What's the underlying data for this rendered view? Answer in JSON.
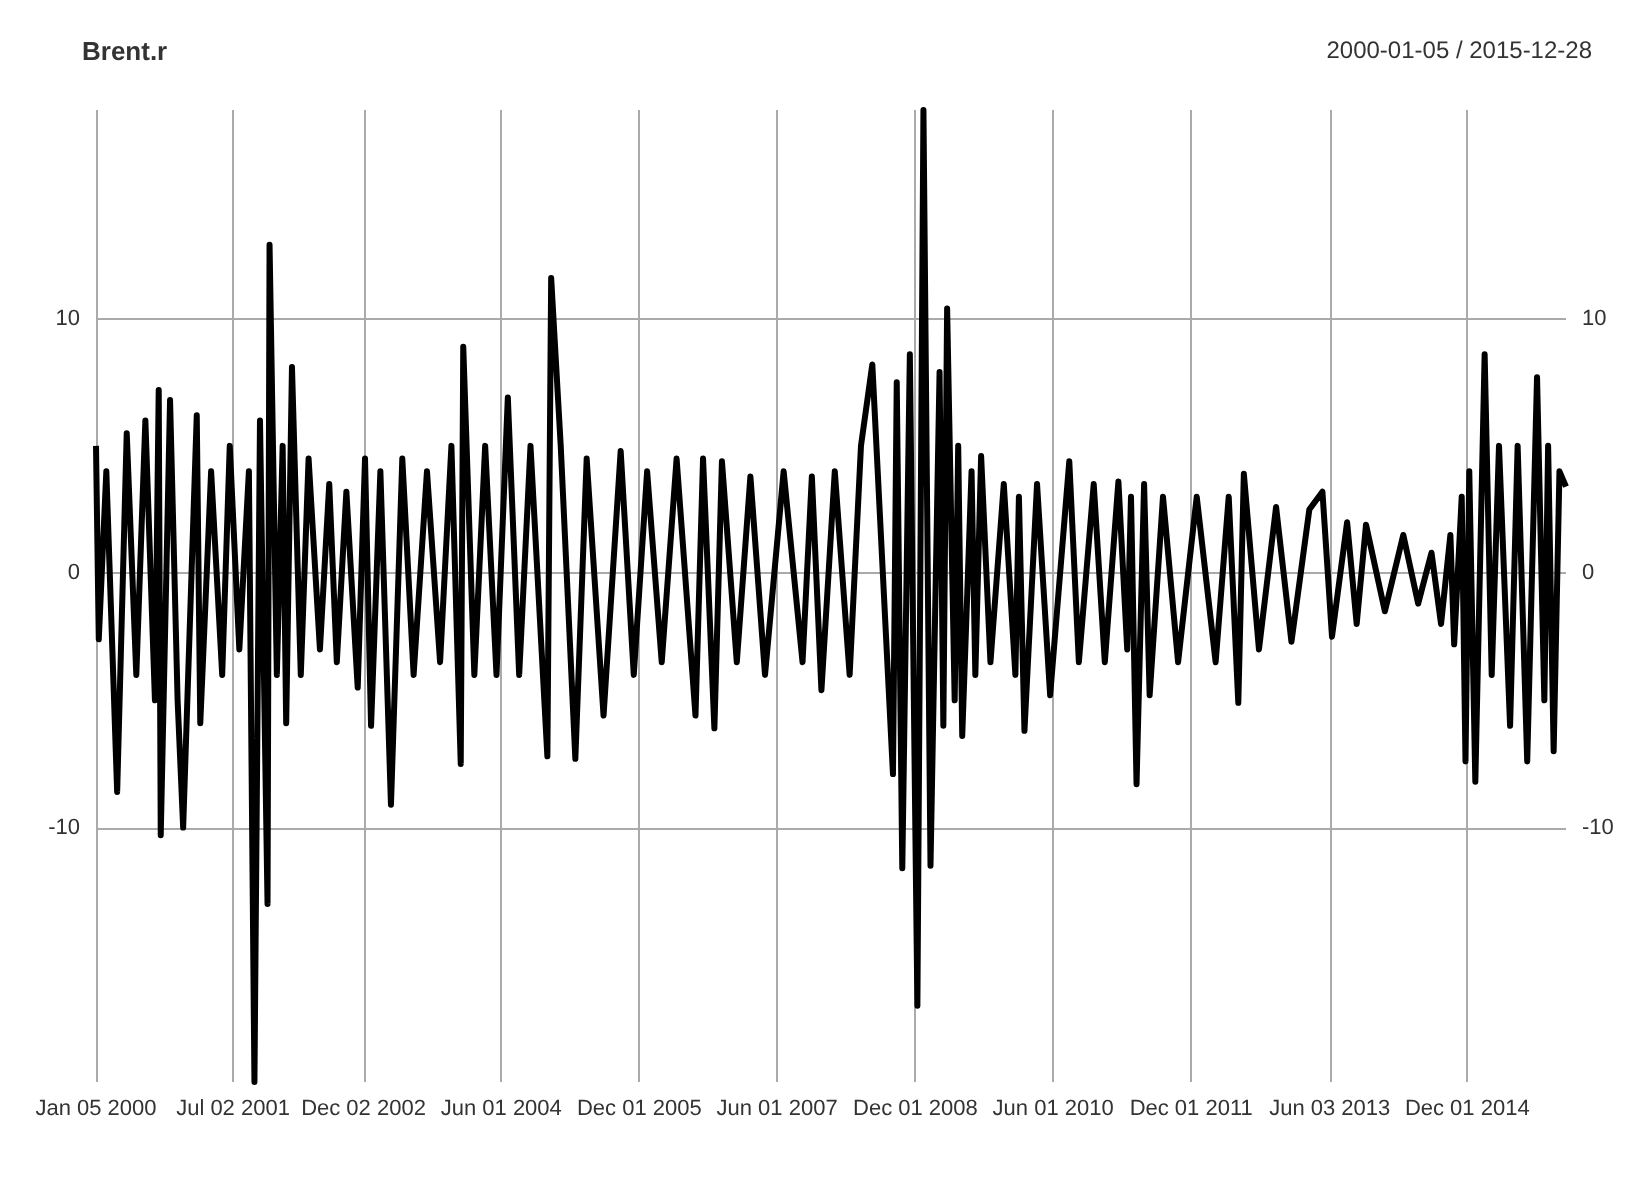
{
  "chart_data": {
    "type": "line",
    "title": "Brent.r",
    "subtitle": "2000-01-05 / 2015-12-28",
    "x": [
      "2000-01-05",
      "2000-01-16",
      "2000-02-15",
      "2000-03-29",
      "2000-05-06",
      "2000-06-13",
      "2000-07-19",
      "2000-08-26",
      "2000-09-10",
      "2000-09-18",
      "2000-10-25",
      "2000-11-24",
      "2000-12-16",
      "2001-02-08",
      "2001-02-22",
      "2001-04-06",
      "2001-05-20",
      "2001-06-19",
      "2001-07-27",
      "2001-09-03",
      "2001-09-25",
      "2001-10-17",
      "2001-11-16",
      "2001-11-24",
      "2001-12-23",
      "2002-01-15",
      "2002-01-29",
      "2002-02-21",
      "2002-03-28",
      "2002-04-28",
      "2002-06-12",
      "2002-07-19",
      "2002-08-18",
      "2002-09-25",
      "2002-11-09",
      "2002-12-08",
      "2003-01-01",
      "2003-02-07",
      "2003-03-21",
      "2003-05-05",
      "2003-06-19",
      "2003-08-11",
      "2003-10-02",
      "2003-11-16",
      "2003-12-23",
      "2004-01-02",
      "2004-02-15",
      "2004-03-29",
      "2004-05-13",
      "2004-06-27",
      "2004-08-11",
      "2004-09-25",
      "2004-12-01",
      "2004-12-16",
      "2005-01-23",
      "2005-03-22",
      "2005-05-06",
      "2005-07-12",
      "2005-09-18",
      "2005-11-09",
      "2006-01-01",
      "2006-02-28",
      "2006-04-28",
      "2006-07-12",
      "2006-08-11",
      "2006-09-25",
      "2006-10-25",
      "2006-12-23",
      "2007-02-15",
      "2007-04-14",
      "2007-06-27",
      "2007-09-10",
      "2007-10-17",
      "2007-11-24",
      "2008-01-16",
      "2008-03-15",
      "2008-04-29",
      "2008-06-13",
      "2008-09-03",
      "2008-09-18",
      "2008-10-10",
      "2008-11-09",
      "2008-12-09",
      "2009-01-02",
      "2009-01-30",
      "2009-03-07",
      "2009-03-22",
      "2009-04-06",
      "2009-05-06",
      "2009-05-20",
      "2009-06-05",
      "2009-07-12",
      "2009-07-27",
      "2009-08-19",
      "2009-09-25",
      "2009-11-17",
      "2010-01-02",
      "2010-01-16",
      "2010-02-07",
      "2010-03-29",
      "2010-05-20",
      "2010-08-04",
      "2010-09-11",
      "2010-11-09",
      "2010-12-23",
      "2011-02-15",
      "2011-03-22",
      "2011-04-06",
      "2011-04-28",
      "2011-05-28",
      "2011-06-19",
      "2011-08-11",
      "2011-10-10",
      "2011-12-23",
      "2012-03-07",
      "2012-04-28",
      "2012-06-05",
      "2012-06-27",
      "2012-08-26",
      "2012-11-02",
      "2013-01-02",
      "2013-03-14",
      "2013-05-05",
      "2013-06-12",
      "2013-08-11",
      "2013-09-18",
      "2013-10-25",
      "2014-01-08",
      "2014-03-22",
      "2014-05-20",
      "2014-07-12",
      "2014-08-19",
      "2014-09-25",
      "2014-10-10",
      "2014-11-09",
      "2014-11-24",
      "2014-12-09",
      "2015-01-02",
      "2015-02-08",
      "2015-03-08",
      "2015-04-06",
      "2015-05-20",
      "2015-06-19",
      "2015-07-27",
      "2015-09-04",
      "2015-10-03",
      "2015-10-18",
      "2015-11-09",
      "2015-12-02",
      "2015-12-28"
    ],
    "series": [
      {
        "color": "#000000",
        "values": [
          5.0,
          -2.6,
          4,
          -8.6,
          5.5,
          -4,
          6,
          -5,
          7.2,
          -10.3,
          6.8,
          -5,
          -10,
          6.2,
          -5.9,
          4,
          -4,
          5,
          -3,
          4,
          -20,
          6,
          -13,
          12.9,
          -4,
          5,
          -5.9,
          8.1,
          -4,
          4.5,
          -3,
          3.5,
          -3.5,
          3.2,
          -4.5,
          4.5,
          -6,
          4,
          -9.1,
          4.5,
          -4,
          4,
          -3.5,
          5,
          -7.5,
          8.9,
          -4,
          5,
          -4,
          6.9,
          -4,
          5,
          -7.2,
          11.6,
          5,
          -7.3,
          4.5,
          -5.6,
          4.8,
          -4,
          4,
          -3.5,
          4.5,
          -5.6,
          4.5,
          -6.1,
          4.4,
          -3.5,
          3.8,
          -4,
          4,
          -3.5,
          3.8,
          -4.6,
          4,
          -4,
          5,
          8.2,
          -7.9,
          7.5,
          -11.6,
          8.6,
          -17,
          18.2,
          -11.5,
          7.9,
          -6,
          10.4,
          -5,
          5,
          -6.4,
          4,
          -4,
          4.6,
          -3.5,
          3.5,
          -4,
          3,
          -6.2,
          3.5,
          -4.8,
          4.4,
          -3.5,
          3.5,
          -3.5,
          3.6,
          -3,
          3,
          -8.3,
          3.5,
          -4.8,
          3,
          -3.5,
          3,
          -3.5,
          3,
          -5.1,
          3.9,
          -3,
          2.6,
          -2.7,
          2.5,
          3.2,
          -2.5,
          2,
          -2,
          1.9,
          -1.5,
          1.5,
          -1.2,
          0.8,
          -2,
          1.5,
          -2.8,
          3,
          -7.4,
          4,
          -8.2,
          8.6,
          -4,
          5,
          -6,
          5,
          -7.4,
          7.7,
          -5,
          5,
          -7,
          4,
          3.4
        ]
      }
    ],
    "xlim": [
      "2000-01-05",
      "2015-12-28"
    ],
    "xticks": [
      {
        "value": "2000-01-05",
        "label": "Jan 05 2000"
      },
      {
        "value": "2001-07-02",
        "label": "Jul 02 2001"
      },
      {
        "value": "2002-12-02",
        "label": "Dec 02 2002"
      },
      {
        "value": "2004-06-01",
        "label": "Jun 01 2004"
      },
      {
        "value": "2005-12-01",
        "label": "Dec 01 2005"
      },
      {
        "value": "2007-06-01",
        "label": "Jun 01 2007"
      },
      {
        "value": "2008-12-01",
        "label": "Dec 01 2008"
      },
      {
        "value": "2010-06-01",
        "label": "Jun 01 2010"
      },
      {
        "value": "2011-12-01",
        "label": "Dec 01 2011"
      },
      {
        "value": "2013-06-03",
        "label": "Jun 03 2013"
      },
      {
        "value": "2014-12-01",
        "label": "Dec 01 2014"
      }
    ],
    "ylim": [
      -20,
      18.2
    ],
    "yticks": [
      -10,
      0,
      10
    ],
    "y2lim": [
      -20,
      18.2
    ],
    "y2ticks": [
      -10,
      0,
      10
    ],
    "grid": true,
    "marker": "none",
    "line_style": "solid"
  }
}
